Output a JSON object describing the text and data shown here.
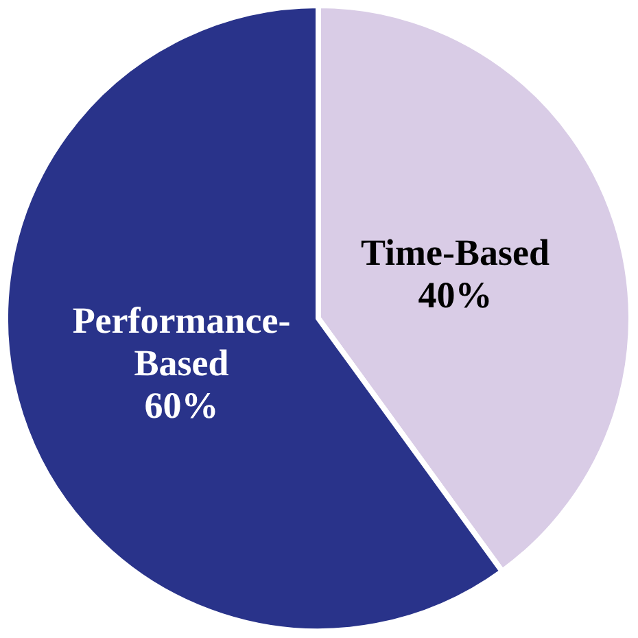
{
  "chart_data": {
    "type": "pie",
    "categories": [
      "Time-Based",
      "Performance-Based"
    ],
    "values": [
      40,
      60
    ],
    "colors": [
      "#d9cce6",
      "#29338a"
    ],
    "value_labels": [
      "40%",
      "60%"
    ]
  }
}
